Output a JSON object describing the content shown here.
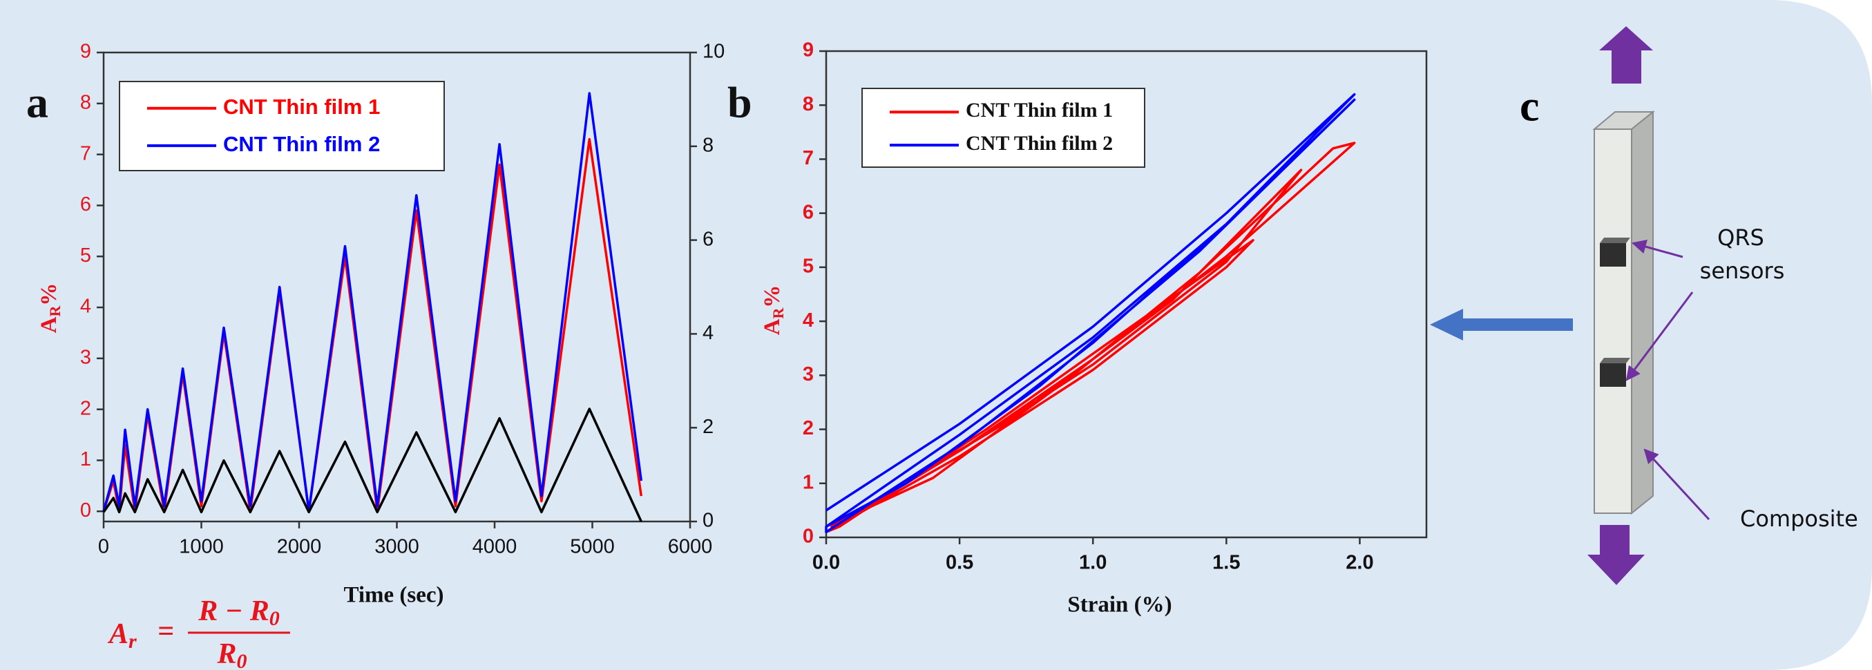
{
  "chart_data": [
    {
      "type": "line",
      "panel_label": "a",
      "xlabel": "Time (sec)",
      "ylabel": {
        "text": "A",
        "subscript": "R",
        "suffix": "%"
      },
      "x": [
        0,
        100,
        160,
        220,
        320,
        450,
        620,
        810,
        1000,
        1230,
        1500,
        1800,
        2100,
        2470,
        2800,
        3200,
        3600,
        4050,
        4480,
        4970,
        5500
      ],
      "series": [
        {
          "name": "CNT Thin film 1",
          "color": "#ff0000",
          "values": [
            0,
            0.6,
            0,
            1.3,
            0,
            1.9,
            0,
            2.7,
            0.1,
            3.5,
            0,
            4.3,
            0,
            5.0,
            0,
            5.9,
            0.1,
            6.8,
            0.2,
            7.3,
            0.3
          ]
        },
        {
          "name": "CNT Thin film 2",
          "color": "#0000ff",
          "values": [
            0,
            0.7,
            0.1,
            1.6,
            0.1,
            2.0,
            0.1,
            2.8,
            0.2,
            3.6,
            0.1,
            4.4,
            0,
            5.2,
            0.1,
            6.2,
            0.2,
            7.2,
            0.3,
            8.2,
            0.6
          ]
        },
        {
          "color": "#000000",
          "axis": "y2",
          "values": [
            0.2,
            0.5,
            0.2,
            0.6,
            0.2,
            0.9,
            0.2,
            1.1,
            0.2,
            1.3,
            0.2,
            1.5,
            0.2,
            1.7,
            0.2,
            1.9,
            0.2,
            2.2,
            0.2,
            2.4,
            0
          ]
        }
      ],
      "xlim": [
        0,
        6000
      ],
      "xticks": [
        0,
        1000,
        2000,
        3000,
        4000,
        5000,
        6000
      ],
      "ylim": [
        -0.2,
        9
      ],
      "yticks": [
        0,
        1,
        2,
        3,
        4,
        5,
        6,
        7,
        8,
        9
      ],
      "y2lim": [
        0,
        10
      ],
      "y2ticks": [
        0,
        2,
        4,
        6,
        8,
        10
      ],
      "grid": false,
      "legend": "upper left"
    },
    {
      "type": "line",
      "panel_label": "b",
      "xlabel": "Strain (%)",
      "ylabel": {
        "text": "A",
        "subscript": "R",
        "suffix": "%"
      },
      "series": [
        {
          "name": "CNT Thin film 1",
          "color": "#ff0000",
          "x": [
            0.0,
            0.5,
            1.0,
            1.5,
            1.6,
            1.2,
            0.6,
            0.05,
            0.0,
            0.5,
            1.0,
            1.5,
            1.78,
            1.3,
            0.7,
            0.05,
            0.02,
            0.5,
            1.0,
            1.5,
            1.98,
            1.9,
            1.4,
            0.9,
            0.4,
            0.05
          ],
          "values": [
            0.1,
            1.5,
            3.1,
            5.0,
            5.5,
            4.1,
            2.0,
            0.2,
            0.1,
            1.6,
            3.2,
            5.1,
            6.8,
            4.4,
            2.2,
            0.3,
            0.2,
            1.6,
            3.3,
            5.2,
            7.3,
            7.2,
            4.9,
            2.9,
            1.1,
            0.3
          ]
        },
        {
          "name": "CNT Thin film 2",
          "color": "#0000ff",
          "x": [
            0.0,
            0.5,
            1.0,
            1.5,
            1.98,
            1.5,
            1.0,
            0.5,
            0.0,
            0.0,
            0.5,
            1.0,
            1.5,
            1.98,
            1.4,
            0.8,
            0.3,
            0.0
          ],
          "values": [
            0.5,
            2.1,
            3.9,
            6.0,
            8.2,
            5.8,
            3.6,
            1.7,
            0.1,
            0.2,
            1.9,
            3.7,
            5.8,
            8.1,
            5.3,
            2.8,
            1.0,
            0.2
          ]
        }
      ],
      "xlim": [
        0,
        2.25
      ],
      "xticks": [
        {
          "value": 0,
          "label": "0.0"
        },
        0.5,
        {
          "value": 1,
          "label": "1.0"
        },
        1.5,
        {
          "value": 2,
          "label": "2.0"
        }
      ],
      "ylim": [
        0,
        9
      ],
      "yticks": [
        0,
        1,
        2,
        3,
        4,
        5,
        6,
        7,
        8,
        9
      ],
      "grid": false,
      "legend": "upper left"
    }
  ],
  "formula": {
    "lhs": "A",
    "lhs_sub": "r",
    "equals": "=",
    "numerator": "R − R",
    "numerator_sub": "0",
    "denominator": "R",
    "denominator_sub": "0"
  },
  "diagram": {
    "panel_label": "c",
    "sensor_label": [
      "QRS",
      "sensors"
    ],
    "composite_label": "Composite"
  }
}
